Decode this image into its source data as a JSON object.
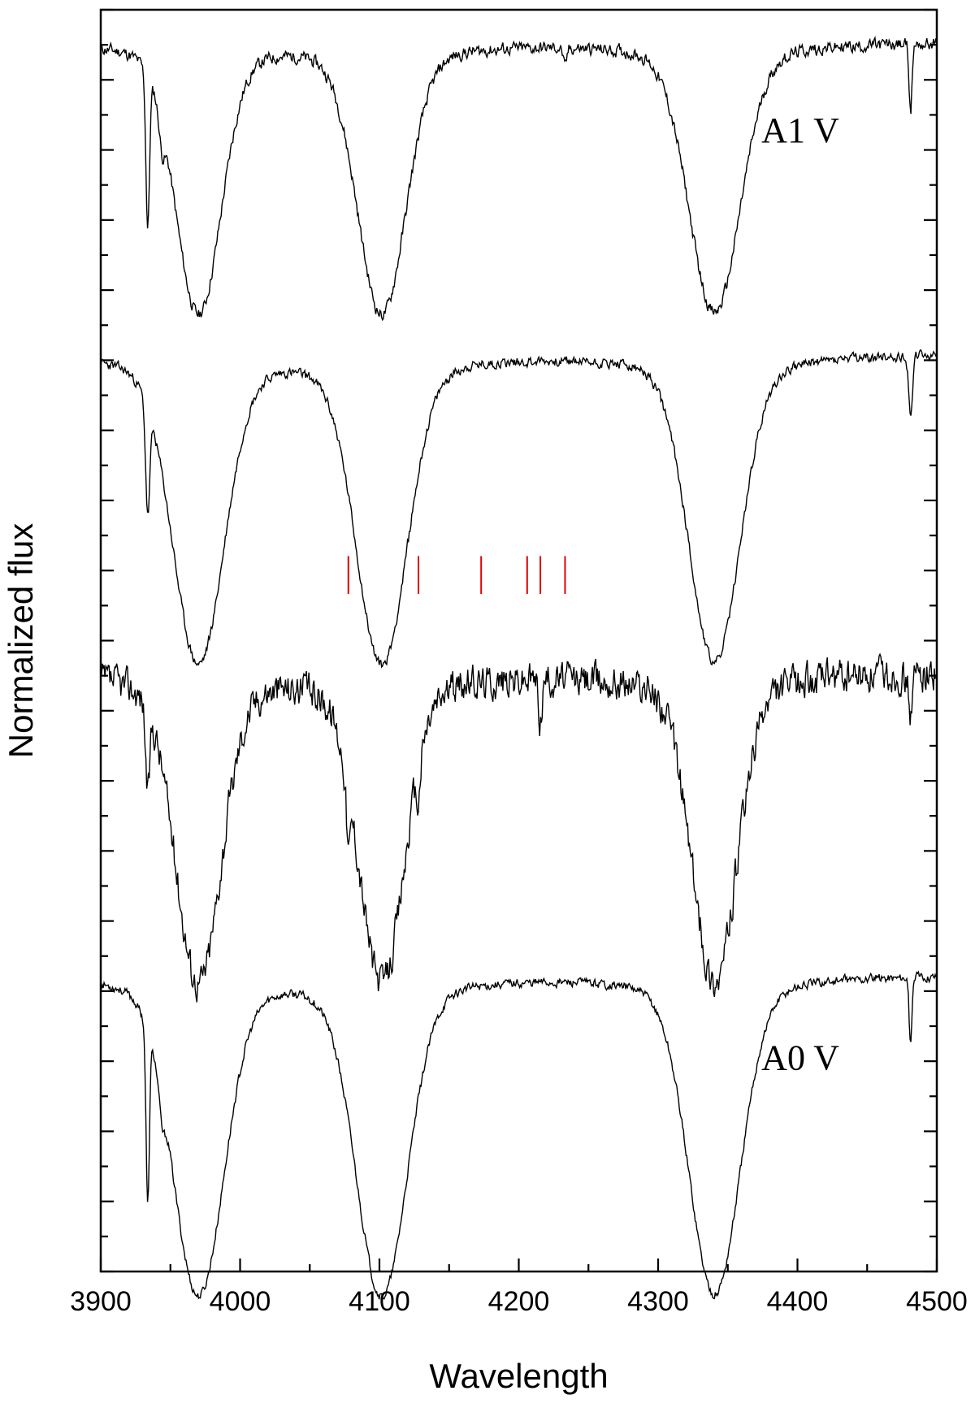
{
  "chart_data": {
    "type": "line",
    "xlabel": "Wavelength",
    "ylabel": "Normalized flux",
    "xlim": [
      3900,
      4500
    ],
    "ylim": [
      0,
      1
    ],
    "x_ticks": [
      3900,
      4000,
      4100,
      4200,
      4300,
      4400,
      4500
    ],
    "x_minor_step": 50,
    "y_tick_count": 18,
    "y_tick_labels_shown": false,
    "grid": false,
    "line_color": "#000000",
    "marker_color": "#e00000",
    "series": [
      {
        "name": "A1 V",
        "baseline": 0.975,
        "scale": 0.195,
        "lines": [
          {
            "center": 3933.7,
            "depth": 0.62,
            "width": 1.3
          },
          {
            "center": 3970.1,
            "depth": 1.0,
            "width": 16
          },
          {
            "center": 4101.7,
            "depth": 1.0,
            "width": 17
          },
          {
            "center": 4340.5,
            "depth": 1.0,
            "width": 18
          },
          {
            "center": 4481.2,
            "depth": 0.28,
            "width": 1.0
          },
          {
            "center": 3944.0,
            "depth": 0.12,
            "width": 2.0
          },
          {
            "center": 4233.2,
            "depth": 0.08,
            "width": 1.2
          }
        ],
        "noise": 0.02,
        "seed": 11
      },
      {
        "name": "",
        "baseline": 0.728,
        "scale": 0.222,
        "lines": [
          {
            "center": 3933.7,
            "depth": 0.38,
            "width": 1.5
          },
          {
            "center": 3970.1,
            "depth": 1.0,
            "width": 18
          },
          {
            "center": 4101.7,
            "depth": 1.0,
            "width": 18
          },
          {
            "center": 4340.5,
            "depth": 1.0,
            "width": 18
          },
          {
            "center": 4481.2,
            "depth": 0.2,
            "width": 1.4
          }
        ],
        "noise": 0.014,
        "seed": 23
      },
      {
        "name": "",
        "baseline": 0.475,
        "scale": 0.222,
        "lines": [
          {
            "center": 3933.7,
            "depth": 0.3,
            "width": 1.4
          },
          {
            "center": 3970.1,
            "depth": 1.0,
            "width": 16
          },
          {
            "center": 4077.7,
            "depth": 0.22,
            "width": 1.4
          },
          {
            "center": 4101.7,
            "depth": 1.0,
            "width": 16
          },
          {
            "center": 4128.0,
            "depth": 0.12,
            "width": 1.4
          },
          {
            "center": 4215.5,
            "depth": 0.14,
            "width": 1.3
          },
          {
            "center": 4340.5,
            "depth": 1.0,
            "width": 16
          },
          {
            "center": 4481.2,
            "depth": 0.14,
            "width": 1.4
          }
        ],
        "noise": 0.048,
        "seed": 37
      },
      {
        "name": "A0 V",
        "baseline": 0.236,
        "scale": 0.23,
        "lines": [
          {
            "center": 3933.7,
            "depth": 0.6,
            "width": 1.2
          },
          {
            "center": 3970.1,
            "depth": 1.0,
            "width": 18
          },
          {
            "center": 4101.7,
            "depth": 1.0,
            "width": 18
          },
          {
            "center": 4340.5,
            "depth": 1.0,
            "width": 18
          },
          {
            "center": 4481.2,
            "depth": 0.24,
            "width": 1.0
          },
          {
            "center": 3944.0,
            "depth": 0.1,
            "width": 2.0
          }
        ],
        "noise": 0.012,
        "seed": 53
      }
    ],
    "markers": [
      {
        "x": 4077.7,
        "y_bottom": 0.537,
        "y_top": 0.567
      },
      {
        "x": 4128.0,
        "y_bottom": 0.537,
        "y_top": 0.567
      },
      {
        "x": 4173.0,
        "y_bottom": 0.537,
        "y_top": 0.567
      },
      {
        "x": 4206.0,
        "y_bottom": 0.537,
        "y_top": 0.567
      },
      {
        "x": 4215.5,
        "y_bottom": 0.537,
        "y_top": 0.567
      },
      {
        "x": 4233.2,
        "y_bottom": 0.537,
        "y_top": 0.567
      }
    ],
    "labels": [
      {
        "text": "A1 V",
        "x": 4430,
        "y": 0.895
      },
      {
        "text": "A0 V",
        "x": 4430,
        "y": 0.16
      }
    ]
  }
}
